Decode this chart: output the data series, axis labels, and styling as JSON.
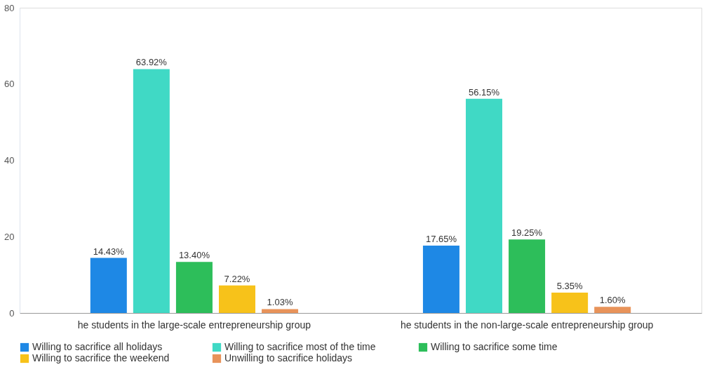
{
  "chart_data": {
    "type": "bar",
    "categories": [
      "he students in the large-scale entrepreneurship group",
      "he students in the non-large-scale entrepreneurship group"
    ],
    "series": [
      {
        "name": "Willing to sacrifice all holidays",
        "color": "#1e88e5",
        "values": [
          14.43,
          17.65
        ],
        "value_labels": [
          "14.43%",
          "17.65%"
        ]
      },
      {
        "name": "Willing to sacrifice most of the time",
        "color": "#40d9c5",
        "values": [
          63.92,
          56.15
        ],
        "value_labels": [
          "63.92%",
          "56.15%"
        ]
      },
      {
        "name": "Willing to sacrifice some time",
        "color": "#2dbe5a",
        "values": [
          13.4,
          19.25
        ],
        "value_labels": [
          "13.40%",
          "19.25%"
        ]
      },
      {
        "name": "Willing to sacrifice the weekend",
        "color": "#f7c21a",
        "values": [
          7.22,
          5.35
        ],
        "value_labels": [
          "7.22%",
          "5.35%"
        ]
      },
      {
        "name": "Unwilling to sacrifice holidays",
        "color": "#e8935a",
        "values": [
          1.03,
          1.6
        ],
        "value_labels": [
          "1.03%",
          "1.60%"
        ]
      }
    ],
    "ylim": [
      0,
      80
    ],
    "yticks": [
      0,
      20,
      40,
      60,
      80
    ],
    "grid": false,
    "legend": "bottom"
  }
}
